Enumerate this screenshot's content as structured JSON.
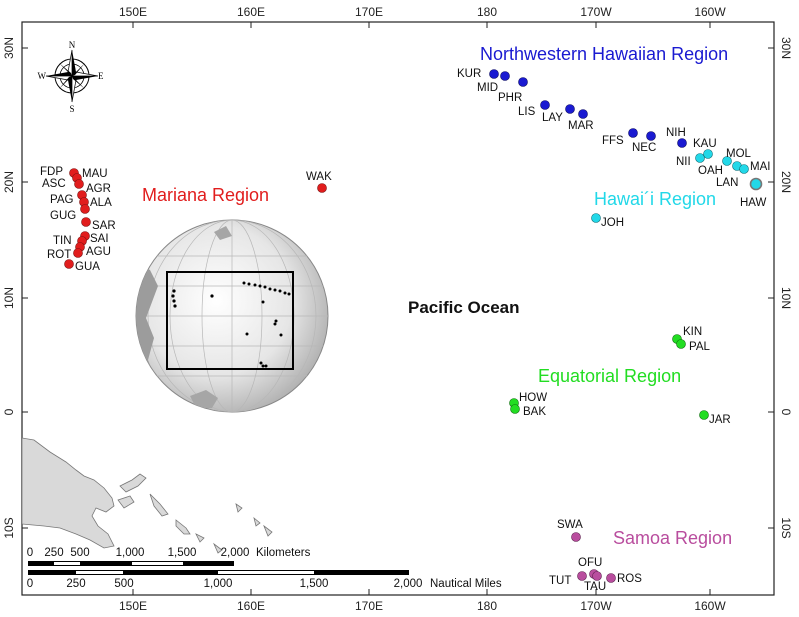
{
  "map": {
    "ocean_label": "Pacific Ocean",
    "axes": {
      "top": [
        "150E",
        "160E",
        "170E",
        "180",
        "170W",
        "160W"
      ],
      "bottom": [
        "150E",
        "160E",
        "170E",
        "180",
        "170W",
        "160W"
      ],
      "left": [
        "30N",
        "20N",
        "10N",
        "0",
        "10S"
      ],
      "right": [
        "30N",
        "20N",
        "10N",
        "0",
        "10S"
      ]
    },
    "compass": {
      "n": "N",
      "s": "S",
      "e": "E",
      "w": "W"
    },
    "regions": [
      {
        "id": "mariana",
        "name": "Mariana Region",
        "color": "#e11d1d"
      },
      {
        "id": "nwhi",
        "name": "Northwestern Hawaiian Region",
        "color": "#1a1ad1"
      },
      {
        "id": "hawaii",
        "name": "Hawai´i Region",
        "color": "#22d8e8"
      },
      {
        "id": "equatorial",
        "name": "Equatorial Region",
        "color": "#22dd22"
      },
      {
        "id": "samoa",
        "name": "Samoa Region",
        "color": "#b94d9e"
      }
    ],
    "sites": [
      {
        "code": "FDP",
        "region": "mariana"
      },
      {
        "code": "MAU",
        "region": "mariana"
      },
      {
        "code": "ASC",
        "region": "mariana"
      },
      {
        "code": "AGR",
        "region": "mariana"
      },
      {
        "code": "PAG",
        "region": "mariana"
      },
      {
        "code": "ALA",
        "region": "mariana"
      },
      {
        "code": "GUG",
        "region": "mariana"
      },
      {
        "code": "SAR",
        "region": "mariana"
      },
      {
        "code": "TIN",
        "region": "mariana"
      },
      {
        "code": "SAI",
        "region": "mariana"
      },
      {
        "code": "AGU",
        "region": "mariana"
      },
      {
        "code": "ROT",
        "region": "mariana"
      },
      {
        "code": "GUA",
        "region": "mariana"
      },
      {
        "code": "WAK",
        "region": "mariana"
      },
      {
        "code": "KUR",
        "region": "nwhi"
      },
      {
        "code": "MID",
        "region": "nwhi"
      },
      {
        "code": "PHR",
        "region": "nwhi"
      },
      {
        "code": "LIS",
        "region": "nwhi"
      },
      {
        "code": "LAY",
        "region": "nwhi"
      },
      {
        "code": "MAR",
        "region": "nwhi"
      },
      {
        "code": "FFS",
        "region": "nwhi"
      },
      {
        "code": "NEC",
        "region": "nwhi"
      },
      {
        "code": "NIH",
        "region": "nwhi"
      },
      {
        "code": "KAU",
        "region": "hawaii"
      },
      {
        "code": "NII",
        "region": "hawaii"
      },
      {
        "code": "MOL",
        "region": "hawaii"
      },
      {
        "code": "OAH",
        "region": "hawaii"
      },
      {
        "code": "MAI",
        "region": "hawaii"
      },
      {
        "code": "LAN",
        "region": "hawaii"
      },
      {
        "code": "HAW",
        "region": "hawaii"
      },
      {
        "code": "JOH",
        "region": "hawaii"
      },
      {
        "code": "KIN",
        "region": "equatorial"
      },
      {
        "code": "PAL",
        "region": "equatorial"
      },
      {
        "code": "HOW",
        "region": "equatorial"
      },
      {
        "code": "BAK",
        "region": "equatorial"
      },
      {
        "code": "JAR",
        "region": "equatorial"
      },
      {
        "code": "SWA",
        "region": "samoa"
      },
      {
        "code": "OFU",
        "region": "samoa"
      },
      {
        "code": "TUT",
        "region": "samoa"
      },
      {
        "code": "TAU",
        "region": "samoa"
      },
      {
        "code": "ROS",
        "region": "samoa"
      }
    ],
    "scale_km": {
      "ticks": [
        "0",
        "250",
        "500",
        "1,000",
        "1,500",
        "2,000"
      ],
      "unit": "Kilometers"
    },
    "scale_nm": {
      "ticks": [
        "0",
        "250",
        "500",
        "1,000",
        "1,500",
        "2,000"
      ],
      "unit": "Nautical Miles"
    }
  }
}
